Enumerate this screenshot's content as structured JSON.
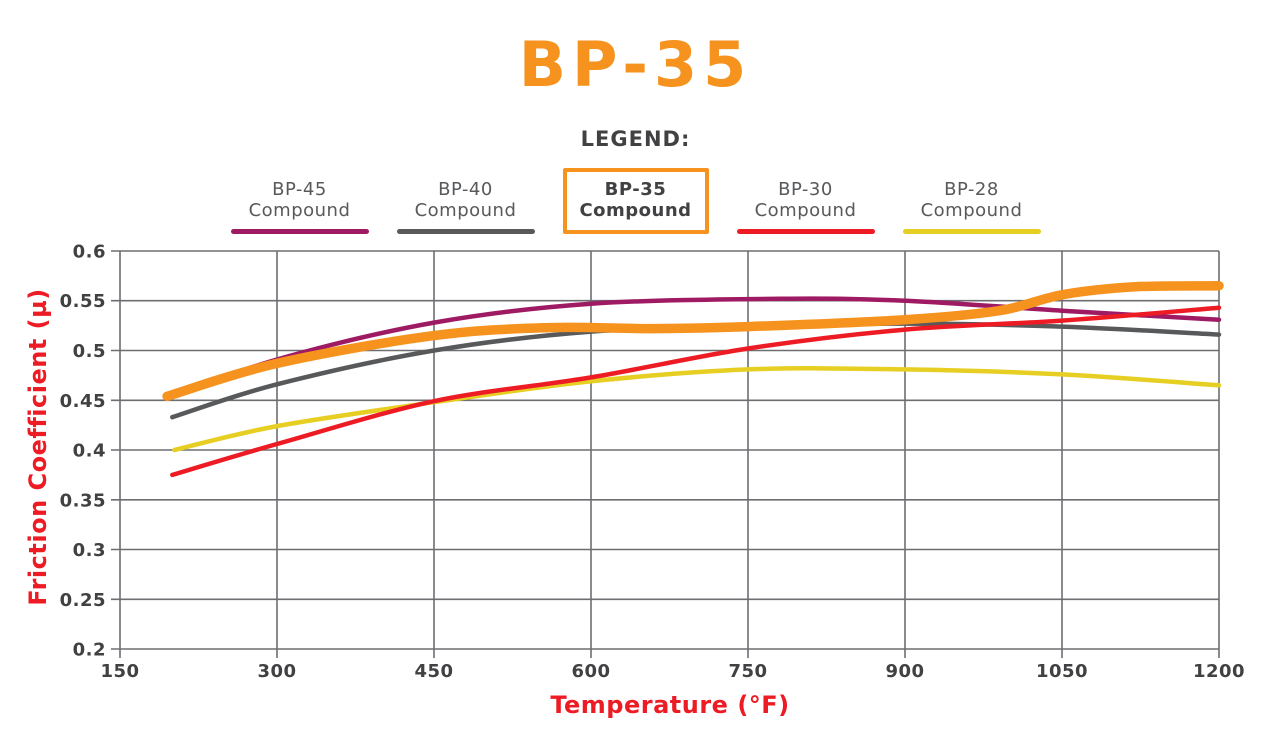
{
  "title": "BP-35",
  "colors": {
    "accent_orange": "#F6921E",
    "axis_title_red": "#ED1C24",
    "tick_text": "#414042",
    "grid": "#6D6E71",
    "legend_text": "#58595B"
  },
  "legend": {
    "heading": "LEGEND:",
    "items": [
      {
        "label_line1": "BP-45",
        "label_line2": "Compound",
        "color": "#9E1B64",
        "highlighted": false
      },
      {
        "label_line1": "BP-40",
        "label_line2": "Compound",
        "color": "#58595B",
        "highlighted": false
      },
      {
        "label_line1": "BP-35",
        "label_line2": "Compound",
        "color": "#F6921E",
        "highlighted": true
      },
      {
        "label_line1": "BP-30",
        "label_line2": "Compound",
        "color": "#ED1C24",
        "highlighted": false
      },
      {
        "label_line1": "BP-28",
        "label_line2": "Compound",
        "color": "#E6CF22",
        "highlighted": false
      }
    ]
  },
  "chart_data": {
    "type": "line",
    "title": "BP-35",
    "xlabel": "Temperature (°F)",
    "ylabel": "Friction Coefficient (µ)",
    "xlim": [
      150,
      1200
    ],
    "ylim": [
      0.2,
      0.6
    ],
    "x_ticks": [
      150,
      300,
      450,
      600,
      750,
      900,
      1050,
      1200
    ],
    "y_ticks": [
      0.2,
      0.25,
      0.3,
      0.35,
      0.4,
      0.45,
      0.5,
      0.55,
      0.6
    ],
    "grid": true,
    "legend_position": "top",
    "series": [
      {
        "name": "BP-45 Compound",
        "color": "#9E1B64",
        "width": 4.5,
        "points": [
          [
            195,
            0.452
          ],
          [
            300,
            0.491
          ],
          [
            450,
            0.528
          ],
          [
            600,
            0.547
          ],
          [
            780,
            0.552
          ],
          [
            900,
            0.55
          ],
          [
            1050,
            0.54
          ],
          [
            1200,
            0.531
          ]
        ]
      },
      {
        "name": "BP-40 Compound",
        "color": "#58595B",
        "width": 4.5,
        "points": [
          [
            200,
            0.433
          ],
          [
            300,
            0.466
          ],
          [
            450,
            0.5
          ],
          [
            600,
            0.519
          ],
          [
            750,
            0.524
          ],
          [
            900,
            0.527
          ],
          [
            1050,
            0.524
          ],
          [
            1200,
            0.516
          ]
        ]
      },
      {
        "name": "BP-28 Compound",
        "color": "#E6CF22",
        "width": 4.5,
        "points": [
          [
            202,
            0.4
          ],
          [
            300,
            0.424
          ],
          [
            450,
            0.448
          ],
          [
            600,
            0.469
          ],
          [
            750,
            0.481
          ],
          [
            900,
            0.481
          ],
          [
            1050,
            0.476
          ],
          [
            1200,
            0.465
          ]
        ]
      },
      {
        "name": "BP-30 Compound",
        "color": "#ED1C24",
        "width": 4.5,
        "points": [
          [
            200,
            0.375
          ],
          [
            300,
            0.406
          ],
          [
            450,
            0.449
          ],
          [
            600,
            0.473
          ],
          [
            750,
            0.502
          ],
          [
            900,
            0.521
          ],
          [
            1050,
            0.53
          ],
          [
            1200,
            0.543
          ]
        ]
      },
      {
        "name": "BP-35 Compound",
        "color": "#F6921E",
        "width": 9.5,
        "points": [
          [
            195,
            0.454
          ],
          [
            300,
            0.487
          ],
          [
            450,
            0.515
          ],
          [
            560,
            0.523
          ],
          [
            660,
            0.522
          ],
          [
            750,
            0.524
          ],
          [
            900,
            0.531
          ],
          [
            990,
            0.54
          ],
          [
            1050,
            0.556
          ],
          [
            1120,
            0.564
          ],
          [
            1200,
            0.565
          ]
        ]
      }
    ]
  }
}
